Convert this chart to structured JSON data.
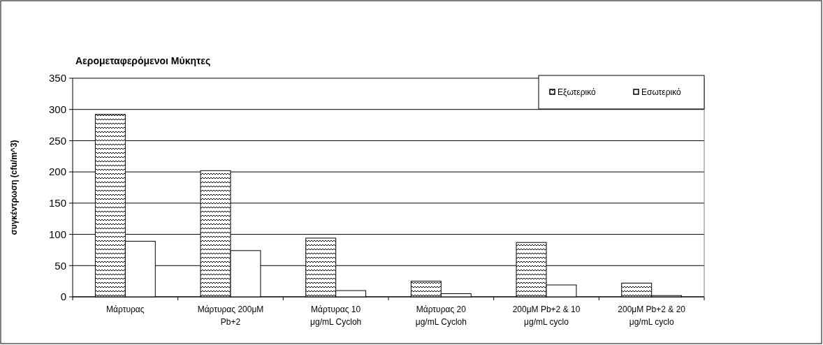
{
  "chart_data": {
    "type": "bar",
    "title": "Αερομεταφερόμενοι  Μύκητες",
    "ylabel": "συγκέντρωση (cfu/m^3)",
    "categories": [
      "Μάρτυρας",
      "Μάρτυρας 200μΜ Pb+2",
      "Μάρτυρας 10 μg/mL Cycloh",
      "Μάρτυρας 20 μg/mL Cycloh",
      "200μΜ Pb+2 & 10 μg/mL cyclo",
      "200μΜ Pb+2 & 20 μg/mL cyclo"
    ],
    "series": [
      {
        "name": "Εξωτερικό",
        "color": "#000000",
        "values": [
          292,
          202,
          94,
          25,
          87,
          22
        ]
      },
      {
        "name": "Εσωτερικό",
        "color": "#ffffff",
        "values": [
          89,
          74,
          10,
          5,
          19,
          2
        ]
      }
    ],
    "ylim": [
      0,
      350
    ],
    "yticks": [
      0,
      50,
      100,
      150,
      200,
      250,
      300,
      350
    ],
    "grid": "y",
    "legend": "top right"
  }
}
